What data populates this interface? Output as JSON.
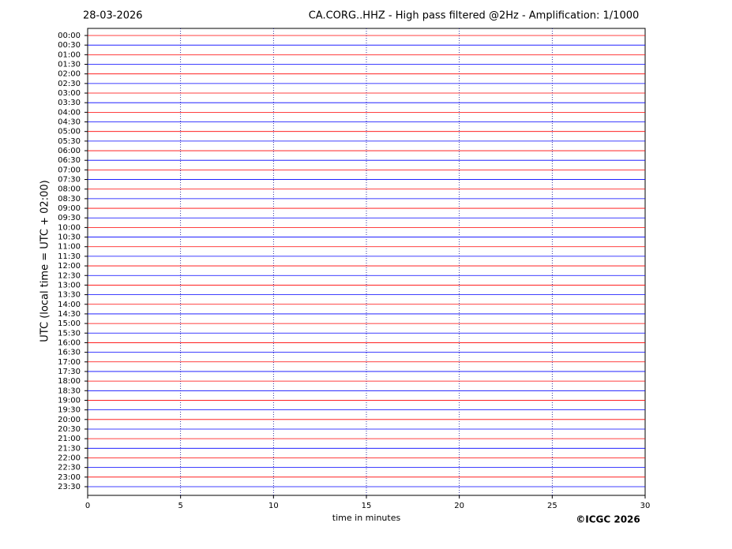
{
  "chart_data": {
    "type": "helicorder",
    "date": "28-03-2026",
    "title": "CA.CORG..HHZ - High pass filtered @2Hz - Amplification: 1/1000",
    "ylabel": "UTC (local time = UTC + 02:00)",
    "xlabel": "time in minutes",
    "copyright": "©ICGC 2026",
    "categories": [
      "00:00",
      "00:30",
      "01:00",
      "01:30",
      "02:00",
      "02:30",
      "03:00",
      "03:30",
      "04:00",
      "04:30",
      "05:00",
      "05:30",
      "06:00",
      "06:30",
      "07:00",
      "07:30",
      "08:00",
      "08:30",
      "09:00",
      "09:30",
      "10:00",
      "10:30",
      "11:00",
      "11:30",
      "12:00",
      "12:30",
      "13:00",
      "13:30",
      "14:00",
      "14:30",
      "15:00",
      "15:30",
      "16:00",
      "16:30",
      "17:00",
      "17:30",
      "18:00",
      "18:30",
      "19:00",
      "19:30",
      "20:00",
      "20:30",
      "21:00",
      "21:30",
      "22:00",
      "22:30",
      "23:00",
      "23:30"
    ],
    "trace_colors": [
      "#ff0000",
      "#0000ff"
    ],
    "xlim": [
      0,
      30
    ],
    "xticks": [
      0,
      5,
      10,
      15,
      20,
      25,
      30
    ],
    "grid": true
  }
}
